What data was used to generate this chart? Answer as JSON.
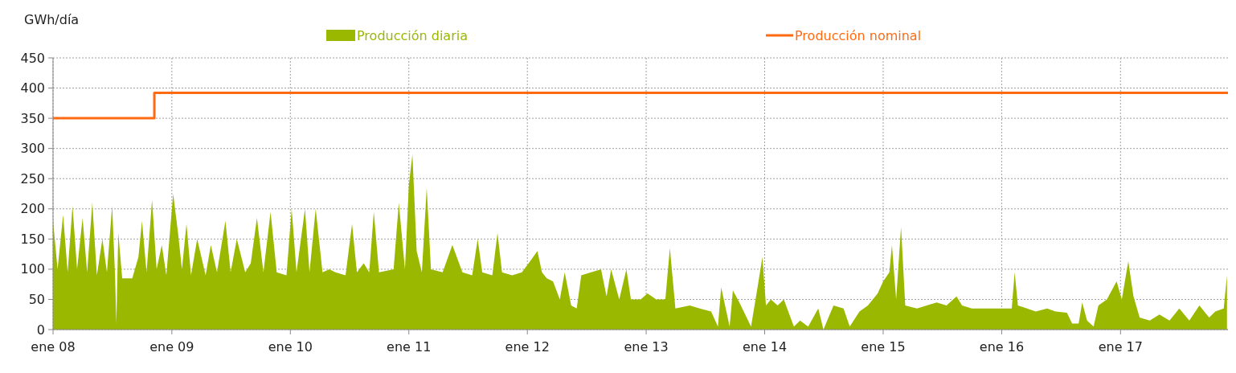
{
  "chart_data": {
    "type": "area",
    "ylabel": "GWh/día",
    "legend": "top",
    "grid": true,
    "xlim": [
      "2008-01-01",
      "2017-11-28"
    ],
    "ylim": [
      0,
      450
    ],
    "yticks": [
      0,
      50,
      100,
      150,
      200,
      250,
      300,
      350,
      400,
      450
    ],
    "xticks": [
      {
        "value": "2008-01-01",
        "label": "ene 08"
      },
      {
        "value": "2009-01-01",
        "label": "ene 09"
      },
      {
        "value": "2010-01-01",
        "label": "ene 10"
      },
      {
        "value": "2011-01-01",
        "label": "ene 11"
      },
      {
        "value": "2012-01-01",
        "label": "ene 12"
      },
      {
        "value": "2013-01-01",
        "label": "ene 13"
      },
      {
        "value": "2014-01-01",
        "label": "ene 14"
      },
      {
        "value": "2015-01-01",
        "label": "ene 15"
      },
      {
        "value": "2016-01-01",
        "label": "ene 16"
      },
      {
        "value": "2017-01-01",
        "label": "ene 17"
      }
    ],
    "series": [
      {
        "name": "Producción diaria",
        "color": "#9bb800",
        "x": [
          "2008-01-01",
          "2008-01-15",
          "2008-02-01",
          "2008-02-15",
          "2008-03-01",
          "2008-03-15",
          "2008-04-01",
          "2008-04-15",
          "2008-05-01",
          "2008-05-15",
          "2008-06-01",
          "2008-06-15",
          "2008-07-01",
          "2008-07-10",
          "2008-07-14",
          "2008-07-20",
          "2008-08-01",
          "2008-09-01",
          "2008-09-20",
          "2008-10-01",
          "2008-10-15",
          "2008-11-01",
          "2008-11-15",
          "2008-12-01",
          "2008-12-15",
          "2009-01-05",
          "2009-01-20",
          "2009-02-01",
          "2009-02-15",
          "2009-03-01",
          "2009-03-20",
          "2009-04-15",
          "2009-05-01",
          "2009-05-20",
          "2009-06-15",
          "2009-07-01",
          "2009-07-20",
          "2009-08-15",
          "2009-09-01",
          "2009-09-20",
          "2009-10-10",
          "2009-11-01",
          "2009-11-20",
          "2009-12-20",
          "2010-01-05",
          "2010-01-20",
          "2010-02-15",
          "2010-03-01",
          "2010-03-20",
          "2010-04-10",
          "2010-05-01",
          "2010-05-20",
          "2010-06-20",
          "2010-07-10",
          "2010-07-25",
          "2010-08-15",
          "2010-09-01",
          "2010-09-15",
          "2010-10-01",
          "2010-11-15",
          "2010-12-01",
          "2010-12-20",
          "2011-01-01",
          "2011-01-12",
          "2011-01-25",
          "2011-02-10",
          "2011-02-25",
          "2011-03-10",
          "2011-04-15",
          "2011-05-15",
          "2011-06-15",
          "2011-07-15",
          "2011-08-01",
          "2011-08-15",
          "2011-09-15",
          "2011-10-01",
          "2011-10-15",
          "2011-11-15",
          "2011-12-15",
          "2012-01-05",
          "2012-02-01",
          "2012-02-15",
          "2012-03-01",
          "2012-03-20",
          "2012-04-10",
          "2012-04-25",
          "2012-05-15",
          "2012-06-01",
          "2012-06-15",
          "2012-07-15",
          "2012-08-15",
          "2012-09-01",
          "2012-09-15",
          "2012-10-10",
          "2012-11-01",
          "2012-11-15",
          "2012-12-15",
          "2013-01-05",
          "2013-02-01",
          "2013-03-01",
          "2013-03-15",
          "2013-04-01",
          "2013-05-15",
          "2013-06-15",
          "2013-07-20",
          "2013-08-10",
          "2013-08-20",
          "2013-09-15",
          "2013-09-25",
          "2013-10-15",
          "2013-11-20",
          "2013-12-10",
          "2013-12-25",
          "2014-01-05",
          "2014-01-20",
          "2014-02-10",
          "2014-03-01",
          "2014-04-01",
          "2014-04-20",
          "2014-05-15",
          "2014-06-15",
          "2014-07-01",
          "2014-08-01",
          "2014-09-01",
          "2014-09-20",
          "2014-10-20",
          "2014-11-15",
          "2014-12-15",
          "2015-01-01",
          "2015-01-20",
          "2015-01-28",
          "2015-02-10",
          "2015-02-25",
          "2015-03-10",
          "2015-04-15",
          "2015-05-15",
          "2015-06-15",
          "2015-07-15",
          "2015-08-15",
          "2015-09-01",
          "2015-10-01",
          "2015-11-01",
          "2016-01-05",
          "2016-02-01",
          "2016-02-10",
          "2016-02-20",
          "2016-04-15",
          "2016-05-20",
          "2016-06-15",
          "2016-07-20",
          "2016-08-05",
          "2016-08-25",
          "2016-09-05",
          "2016-09-20",
          "2016-10-10",
          "2016-10-25",
          "2016-11-20",
          "2016-12-20",
          "2017-01-05",
          "2017-01-25",
          "2017-02-10",
          "2017-03-01",
          "2017-04-01",
          "2017-05-01",
          "2017-06-01",
          "2017-07-01",
          "2017-08-01",
          "2017-09-01",
          "2017-10-01",
          "2017-10-20",
          "2017-11-15",
          "2017-11-25"
        ],
        "values": [
          180,
          100,
          190,
          95,
          205,
          100,
          185,
          95,
          210,
          90,
          150,
          95,
          205,
          90,
          10,
          160,
          85,
          85,
          120,
          180,
          95,
          215,
          100,
          140,
          90,
          225,
          160,
          100,
          175,
          90,
          150,
          90,
          140,
          95,
          180,
          95,
          150,
          95,
          110,
          185,
          95,
          195,
          95,
          90,
          200,
          95,
          200,
          95,
          200,
          95,
          100,
          95,
          90,
          175,
          95,
          110,
          95,
          195,
          95,
          100,
          210,
          100,
          240,
          290,
          130,
          95,
          235,
          100,
          95,
          140,
          95,
          90,
          150,
          95,
          90,
          160,
          95,
          90,
          95,
          110,
          130,
          95,
          85,
          80,
          50,
          95,
          40,
          35,
          90,
          95,
          100,
          55,
          100,
          50,
          100,
          50,
          50,
          60,
          50,
          50,
          135,
          35,
          40,
          35,
          30,
          5,
          70,
          5,
          65,
          45,
          5,
          70,
          120,
          40,
          50,
          40,
          50,
          5,
          15,
          5,
          35,
          0,
          40,
          35,
          5,
          30,
          40,
          60,
          80,
          95,
          140,
          50,
          170,
          40,
          35,
          40,
          45,
          40,
          55,
          40,
          35,
          35,
          35,
          35,
          95,
          40,
          30,
          35,
          30,
          28,
          10,
          10,
          45,
          15,
          5,
          40,
          50,
          80,
          50,
          113,
          55,
          20,
          15,
          25,
          15,
          35,
          15,
          40,
          20,
          30,
          35,
          90
        ]
      },
      {
        "name": "Producción nominal",
        "type": "step",
        "color": "#ff6a13",
        "x": [
          "2008-01-01",
          "2008-11-08",
          "2017-11-28"
        ],
        "values": [
          350,
          392,
          392
        ]
      }
    ]
  }
}
